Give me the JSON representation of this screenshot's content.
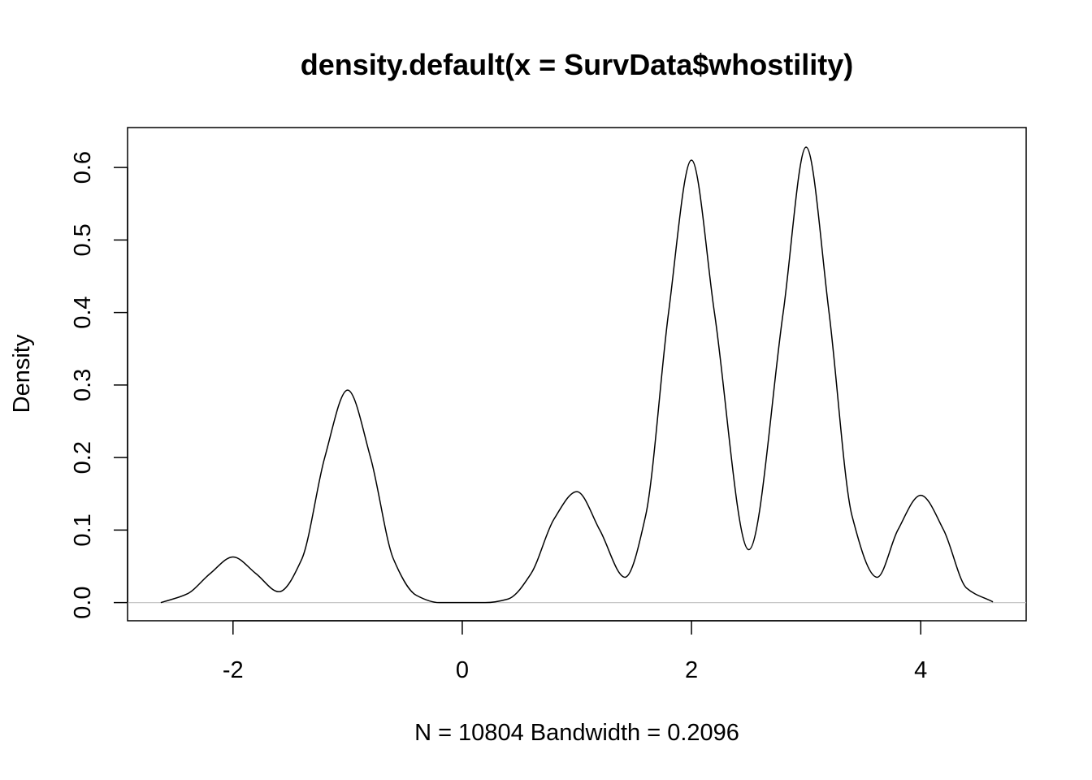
{
  "chart_data": {
    "type": "line",
    "title": "density.default(x = SurvData$whostility)",
    "xlabel": "N = 10804   Bandwidth = 0.2096",
    "ylabel": "Density",
    "xlim": [
      -2.92,
      4.92
    ],
    "ylim": [
      -0.025,
      0.655
    ],
    "x_ticks": [
      -2,
      0,
      2,
      4
    ],
    "x_tick_labels": [
      "-2",
      "0",
      "2",
      "4"
    ],
    "y_ticks": [
      0.0,
      0.1,
      0.2,
      0.3,
      0.4,
      0.5,
      0.6
    ],
    "y_tick_labels": [
      "0.0",
      "0.1",
      "0.2",
      "0.3",
      "0.4",
      "0.5",
      "0.6"
    ],
    "grid": false,
    "reference_line": {
      "y": 0,
      "color": "#bebebe"
    },
    "series": [
      {
        "color": "#000000",
        "x": [
          -2.63,
          -2.4,
          -2.2,
          -2.0,
          -1.8,
          -1.6,
          -1.4,
          -1.2,
          -1.0,
          -0.8,
          -0.6,
          -0.4,
          -0.2,
          0.0,
          0.2,
          0.4,
          0.6,
          0.8,
          1.0,
          1.2,
          1.42,
          1.6,
          1.8,
          2.0,
          2.2,
          2.5,
          2.8,
          3.0,
          3.2,
          3.4,
          3.62,
          3.8,
          4.0,
          4.2,
          4.4,
          4.63
        ],
        "y": [
          0.0,
          0.012,
          0.04,
          0.063,
          0.04,
          0.015,
          0.06,
          0.2,
          0.293,
          0.2,
          0.06,
          0.01,
          0.0,
          0.0,
          0.0,
          0.005,
          0.04,
          0.115,
          0.153,
          0.1,
          0.035,
          0.12,
          0.4,
          0.61,
          0.4,
          0.073,
          0.4,
          0.628,
          0.4,
          0.12,
          0.035,
          0.1,
          0.148,
          0.1,
          0.02,
          0.001
        ]
      }
    ]
  }
}
